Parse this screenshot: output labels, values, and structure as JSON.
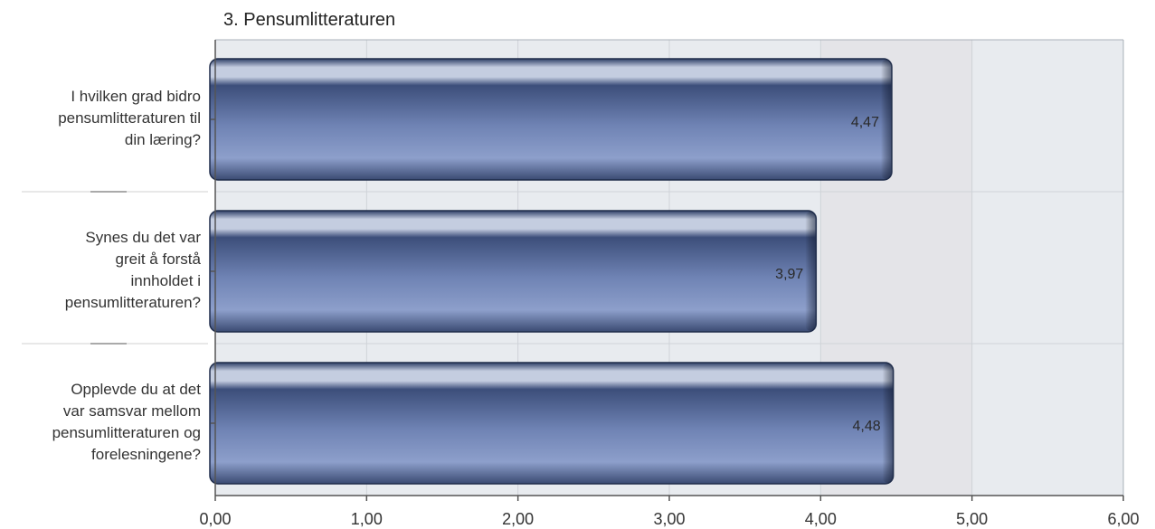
{
  "chart_data": {
    "type": "bar",
    "orientation": "horizontal",
    "title": "3. Pensumlitteraturen",
    "xlabel": "",
    "ylabel": "",
    "xlim": [
      0,
      6
    ],
    "ticks": [
      "0,00",
      "1,00",
      "2,00",
      "3,00",
      "4,00",
      "5,00",
      "6,00"
    ],
    "grid": true,
    "categories": [
      "I hvilken grad bidro pensumlitteraturen til din læring?",
      "Synes du det var greit å forstå innholdet i pensumlitteraturen?",
      "Opplevde du at det var samsvar mellom pensumlitteraturen og forelesningene?"
    ],
    "category_lines": [
      [
        "I hvilken grad bidro",
        "pensumlitteraturen til",
        "din læring?"
      ],
      [
        "Synes du det var",
        "greit å forstå",
        "innholdet i",
        "pensumlitteraturen?"
      ],
      [
        "Opplevde du at det",
        "var samsvar mellom",
        "pensumlitteraturen og",
        "forelesningene?"
      ]
    ],
    "values": [
      4.47,
      3.97,
      4.48
    ],
    "value_labels": [
      "4,47",
      "3,97",
      "4,48"
    ],
    "colors": {
      "bar_dark": "#2e3f66",
      "bar_mid": "#5a6ea0",
      "bar_light": "#8d9fcb",
      "bar_highlight": "#c4cde0",
      "plot_bg": "#e8ebef",
      "band_bg": "#e4e4e8",
      "grid": "#cfd3d8"
    }
  }
}
